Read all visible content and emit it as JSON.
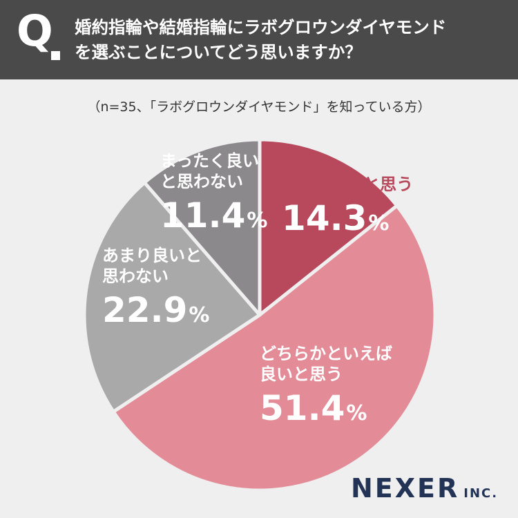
{
  "header": {
    "q_label": "Q",
    "question_line1": "婚約指輪や結婚指輪にラボグロウンダイヤモンド",
    "question_line2": "を選ぶことについてどう思いますか？"
  },
  "subtitle": "（n=35、「ラボグロウンダイヤモンド」を知っている方）",
  "chart_data": {
    "type": "pie",
    "n": 35,
    "slices": [
      {
        "label": "とても良いと思う",
        "value": 14.3,
        "color": "#b8485c"
      },
      {
        "label": "どちらかといえば良いと思う",
        "value": 51.4,
        "color": "#e38c98"
      },
      {
        "label": "あまり良いと思わない",
        "value": 22.9,
        "color": "#a9a9a9"
      },
      {
        "label": "まったく良いと思わない",
        "value": 11.4,
        "color": "#8b898b"
      }
    ],
    "percent_sign": "%"
  },
  "labels": {
    "slice0": {
      "line1": "とても良いと思う",
      "pct": "14.3"
    },
    "slice1": {
      "line1": "どちらかといえば",
      "line2": "良いと思う",
      "pct": "51.4"
    },
    "slice2": {
      "line1": "あまり良いと",
      "line2": "思わない",
      "pct": "22.9"
    },
    "slice3": {
      "line1": "まったく良い",
      "line2": "と思わない",
      "pct": "11.4"
    }
  },
  "logo": {
    "main": "NEXER",
    "suffix": "INC."
  }
}
